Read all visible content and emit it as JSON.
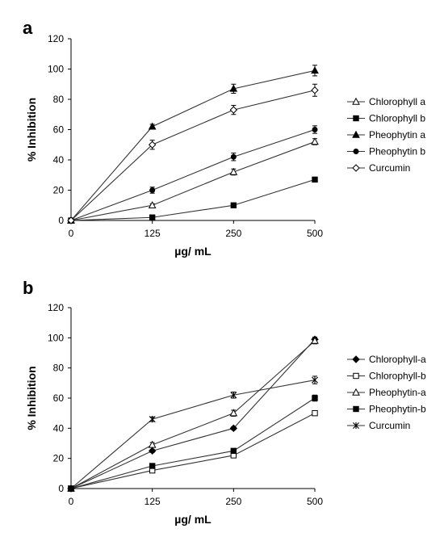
{
  "chart_data": [
    {
      "type": "line",
      "panel_label": "a",
      "title": "",
      "xlabel": "µg/ mL",
      "ylabel": "% Inhibition",
      "categories": [
        "0",
        "125",
        "250",
        "500"
      ],
      "ylim": [
        0,
        120
      ],
      "yticks": [
        "0",
        "20",
        "40",
        "60",
        "80",
        "100",
        "120"
      ],
      "grid": false,
      "legend_position": "right",
      "series": [
        {
          "name": "Chlorophyll a",
          "marker": "triangle-open",
          "values": [
            0,
            10,
            32,
            52
          ],
          "errors": [
            0,
            1,
            2,
            2
          ]
        },
        {
          "name": "Chlorophyll b",
          "marker": "square-filled",
          "values": [
            0,
            2,
            10,
            27
          ],
          "errors": [
            0,
            0.5,
            1,
            1
          ]
        },
        {
          "name": "Pheophytin a",
          "marker": "triangle-filled",
          "values": [
            0,
            62,
            87,
            99
          ],
          "errors": [
            0,
            1.5,
            3,
            3.5
          ]
        },
        {
          "name": "Pheophytin b",
          "marker": "circle-filled",
          "values": [
            0,
            20,
            42,
            60
          ],
          "errors": [
            0,
            2,
            2.5,
            2.5
          ]
        },
        {
          "name": "Curcumin",
          "marker": "diamond-open",
          "values": [
            0,
            50,
            73,
            86
          ],
          "errors": [
            0,
            3,
            3,
            4
          ]
        }
      ]
    },
    {
      "type": "line",
      "panel_label": "b",
      "title": "",
      "xlabel": "µg/ mL",
      "ylabel": "% Inhibition",
      "categories": [
        "0",
        "125",
        "250",
        "500"
      ],
      "ylim": [
        0,
        120
      ],
      "yticks": [
        "0",
        "20",
        "40",
        "60",
        "80",
        "100",
        "120"
      ],
      "grid": false,
      "legend_position": "right",
      "series": [
        {
          "name": "Chlorophyll-a",
          "marker": "diamond-filled",
          "values": [
            0,
            25,
            40,
            99
          ],
          "errors": [
            0,
            1,
            1,
            1.5
          ]
        },
        {
          "name": "Chlorophyll-b",
          "marker": "square-open",
          "values": [
            0,
            12,
            22,
            50
          ],
          "errors": [
            0,
            1,
            1,
            1
          ]
        },
        {
          "name": "Pheophytin-a",
          "marker": "triangle-open",
          "values": [
            0,
            29,
            50,
            98
          ],
          "errors": [
            0,
            1.5,
            2,
            2
          ]
        },
        {
          "name": "Pheophytin-b",
          "marker": "square-filled",
          "values": [
            0,
            15,
            25,
            60
          ],
          "errors": [
            0,
            1,
            1,
            2
          ]
        },
        {
          "name": "Curcumin",
          "marker": "asterisk",
          "values": [
            0,
            46,
            62,
            72
          ],
          "errors": [
            0,
            1.5,
            2,
            2.5
          ]
        }
      ]
    }
  ]
}
